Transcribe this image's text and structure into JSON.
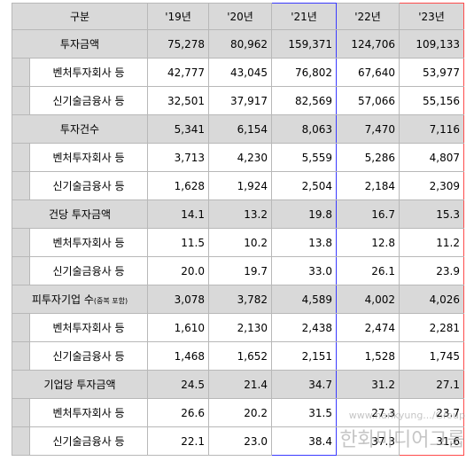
{
  "header": [
    "구분",
    "'19년",
    "'20년",
    "'21년",
    "'22년",
    "'23년"
  ],
  "groups": [
    {
      "label": "투자금액",
      "total": [
        "75,278",
        "80,962",
        "159,371",
        "124,706",
        "109,133"
      ],
      "sub": [
        {
          "label": "벤처투자회사 등",
          "values": [
            "42,777",
            "43,045",
            "76,802",
            "67,640",
            "53,977"
          ]
        },
        {
          "label": "신기술금융사 등",
          "values": [
            "32,501",
            "37,917",
            "82,569",
            "57,066",
            "55,156"
          ]
        }
      ]
    },
    {
      "label": "투자건수",
      "total": [
        "5,341",
        "6,154",
        "8,063",
        "7,470",
        "7,116"
      ],
      "sub": [
        {
          "label": "벤처투자회사 등",
          "values": [
            "3,713",
            "4,230",
            "5,559",
            "5,286",
            "4,807"
          ]
        },
        {
          "label": "신기술금융사 등",
          "values": [
            "1,628",
            "1,924",
            "2,504",
            "2,184",
            "2,309"
          ]
        }
      ]
    },
    {
      "label": "건당 투자금액",
      "total": [
        "14.1",
        "13.2",
        "19.8",
        "16.7",
        "15.3"
      ],
      "sub": [
        {
          "label": "벤처투자회사 등",
          "values": [
            "11.5",
            "10.2",
            "13.8",
            "12.8",
            "11.2"
          ]
        },
        {
          "label": "신기술금융사 등",
          "values": [
            "20.0",
            "19.7",
            "33.0",
            "26.1",
            "23.9"
          ]
        }
      ]
    },
    {
      "label": "피투자기업 수",
      "label_note": "(중복 포함)",
      "total": [
        "3,078",
        "3,782",
        "4,589",
        "4,002",
        "4,026"
      ],
      "sub": [
        {
          "label": "벤처투자회사 등",
          "values": [
            "1,610",
            "2,130",
            "2,438",
            "2,474",
            "2,281"
          ]
        },
        {
          "label": "신기술금융사 등",
          "values": [
            "1,468",
            "1,652",
            "2,151",
            "1,528",
            "1,745"
          ]
        }
      ]
    },
    {
      "label": "기업당 투자금액",
      "total": [
        "24.5",
        "21.4",
        "34.7",
        "31.2",
        "27.1"
      ],
      "sub": [
        {
          "label": "벤처투자회사 등",
          "values": [
            "26.6",
            "20.2",
            "31.5",
            "27.3",
            "23.7"
          ]
        },
        {
          "label": "신기술금융사 등",
          "values": [
            "22.1",
            "23.0",
            "38.4",
            "37.3",
            "31.6"
          ]
        }
      ]
    }
  ],
  "watermark": {
    "line1": "www.hankyung.../Group",
    "line2": "한화미디어그룹"
  }
}
